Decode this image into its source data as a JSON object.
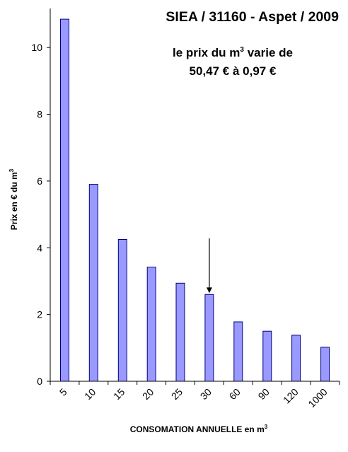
{
  "chart_data": {
    "type": "bar",
    "title": "SIEA / 31160 - Aspet / 2009",
    "annotation": {
      "line1_prefix": "le prix du m",
      "line1_sup": "3",
      "line1_suffix": " varie de",
      "line2": "50,47 €  à 0,97 €",
      "arrow_category": "30"
    },
    "categories": [
      "5",
      "10",
      "15",
      "20",
      "25",
      "30",
      "60",
      "90",
      "120",
      "1000"
    ],
    "values": [
      10.85,
      5.9,
      4.25,
      3.42,
      2.94,
      2.6,
      1.78,
      1.5,
      1.38,
      1.02
    ],
    "ylabel_prefix": "Prix en € du m",
    "ylabel_sup": "3",
    "xlabel_prefix": "CONSOMATION ANNUELLE en m",
    "xlabel_sup": "3",
    "ylim": [
      0,
      11
    ],
    "yticks": [
      0,
      2,
      4,
      6,
      8,
      10
    ],
    "grid": false,
    "legend": "none",
    "colors": {
      "bar_fill": "#9999ff",
      "bar_stroke": "#000080",
      "axis": "#000000"
    }
  }
}
